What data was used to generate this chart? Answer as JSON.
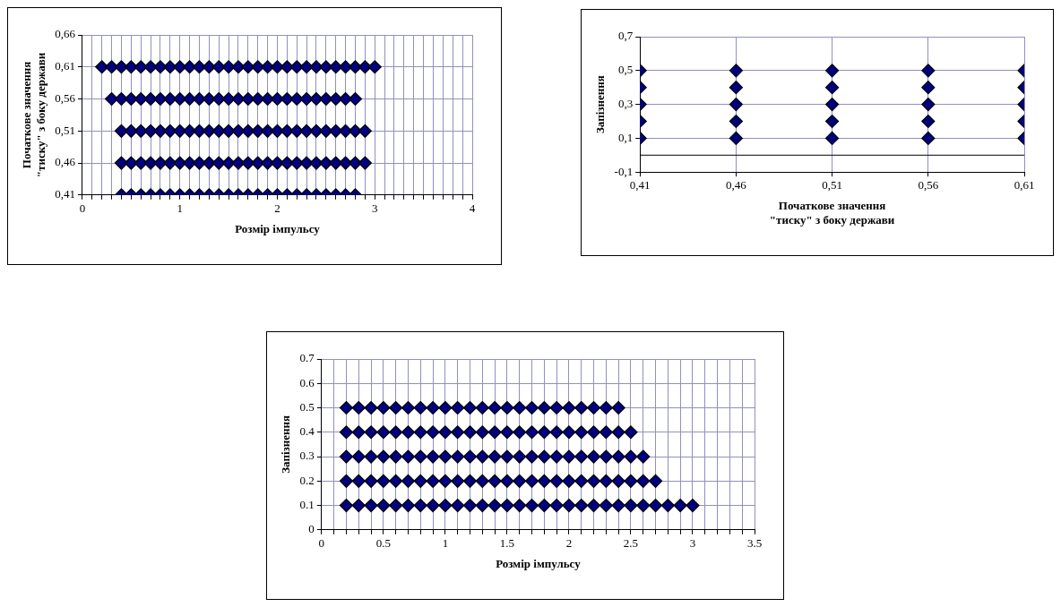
{
  "chart_data": [
    {
      "type": "scatter",
      "xlabel": "Розмір імпульсу",
      "ylabel": "Початкове значення \"тиску\" з боку держави",
      "marker": "diamond",
      "grid": true,
      "xlim": [
        0,
        4
      ],
      "xticks": [
        0,
        {
          "value": 0.1,
          "label": null
        },
        {
          "value": 0.2,
          "label": null
        },
        {
          "value": 0.3,
          "label": null
        },
        {
          "value": 0.4,
          "label": null
        },
        {
          "value": 0.5,
          "label": null
        },
        {
          "value": 0.6,
          "label": null
        },
        {
          "value": 0.7,
          "label": null
        },
        {
          "value": 0.8,
          "label": null
        },
        {
          "value": 0.9,
          "label": null
        },
        1,
        {
          "value": 1.1,
          "label": null
        },
        {
          "value": 1.2,
          "label": null
        },
        {
          "value": 1.3,
          "label": null
        },
        {
          "value": 1.4,
          "label": null
        },
        {
          "value": 1.5,
          "label": null
        },
        {
          "value": 1.6,
          "label": null
        },
        {
          "value": 1.7,
          "label": null
        },
        {
          "value": 1.8,
          "label": null
        },
        {
          "value": 1.9,
          "label": null
        },
        2,
        {
          "value": 2.1,
          "label": null
        },
        {
          "value": 2.2,
          "label": null
        },
        {
          "value": 2.3,
          "label": null
        },
        {
          "value": 2.4,
          "label": null
        },
        {
          "value": 2.5,
          "label": null
        },
        {
          "value": 2.6,
          "label": null
        },
        {
          "value": 2.7,
          "label": null
        },
        {
          "value": 2.8,
          "label": null
        },
        {
          "value": 2.9,
          "label": null
        },
        3,
        {
          "value": 3.1,
          "label": null
        },
        {
          "value": 3.2,
          "label": null
        },
        {
          "value": 3.3,
          "label": null
        },
        {
          "value": 3.4,
          "label": null
        },
        {
          "value": 3.5,
          "label": null
        },
        {
          "value": 3.6,
          "label": null
        },
        {
          "value": 3.7,
          "label": null
        },
        {
          "value": 3.8,
          "label": null
        },
        {
          "value": 3.9,
          "label": null
        },
        4
      ],
      "ylim": [
        0.41,
        0.66
      ],
      "yticks": [
        {
          "value": 0.41,
          "label": "0,41"
        },
        {
          "value": 0.46,
          "label": "0,46"
        },
        {
          "value": 0.51,
          "label": "0,51"
        },
        {
          "value": 0.56,
          "label": "0,56"
        },
        {
          "value": 0.61,
          "label": "0,61"
        },
        {
          "value": 0.66,
          "label": "0,66"
        }
      ],
      "series": [
        {
          "color": "#000080",
          "x": [
            0.2,
            0.3,
            0.4,
            0.5,
            0.6,
            0.7,
            0.8,
            0.9,
            1,
            1.1,
            1.2,
            1.3,
            1.4,
            1.5,
            1.6,
            1.7,
            1.8,
            1.9,
            2,
            2.1,
            2.2,
            2.3,
            2.4,
            2.5,
            2.6,
            2.7,
            2.8,
            2.9,
            3
          ],
          "values": [
            0.61,
            0.61,
            0.61,
            0.61,
            0.61,
            0.61,
            0.61,
            0.61,
            0.61,
            0.61,
            0.61,
            0.61,
            0.61,
            0.61,
            0.61,
            0.61,
            0.61,
            0.61,
            0.61,
            0.61,
            0.61,
            0.61,
            0.61,
            0.61,
            0.61,
            0.61,
            0.61,
            0.61,
            0.61
          ]
        },
        {
          "color": "#000080",
          "x": [
            0.3,
            0.4,
            0.5,
            0.6,
            0.7,
            0.8,
            0.9,
            1,
            1.1,
            1.2,
            1.3,
            1.4,
            1.5,
            1.6,
            1.7,
            1.8,
            1.9,
            2,
            2.1,
            2.2,
            2.3,
            2.4,
            2.5,
            2.6,
            2.7,
            2.8
          ],
          "values": [
            0.56,
            0.56,
            0.56,
            0.56,
            0.56,
            0.56,
            0.56,
            0.56,
            0.56,
            0.56,
            0.56,
            0.56,
            0.56,
            0.56,
            0.56,
            0.56,
            0.56,
            0.56,
            0.56,
            0.56,
            0.56,
            0.56,
            0.56,
            0.56,
            0.56,
            0.56
          ]
        },
        {
          "color": "#000080",
          "x": [
            0.4,
            0.5,
            0.6,
            0.7,
            0.8,
            0.9,
            1,
            1.1,
            1.2,
            1.3,
            1.4,
            1.5,
            1.6,
            1.7,
            1.8,
            1.9,
            2,
            2.1,
            2.2,
            2.3,
            2.4,
            2.5,
            2.6,
            2.7,
            2.8,
            2.9
          ],
          "values": [
            0.51,
            0.51,
            0.51,
            0.51,
            0.51,
            0.51,
            0.51,
            0.51,
            0.51,
            0.51,
            0.51,
            0.51,
            0.51,
            0.51,
            0.51,
            0.51,
            0.51,
            0.51,
            0.51,
            0.51,
            0.51,
            0.51,
            0.51,
            0.51,
            0.51,
            0.51
          ]
        },
        {
          "color": "#000080",
          "x": [
            0.4,
            0.5,
            0.6,
            0.7,
            0.8,
            0.9,
            1,
            1.1,
            1.2,
            1.3,
            1.4,
            1.5,
            1.6,
            1.7,
            1.8,
            1.9,
            2,
            2.1,
            2.2,
            2.3,
            2.4,
            2.5,
            2.6,
            2.7,
            2.8,
            2.9
          ],
          "values": [
            0.46,
            0.46,
            0.46,
            0.46,
            0.46,
            0.46,
            0.46,
            0.46,
            0.46,
            0.46,
            0.46,
            0.46,
            0.46,
            0.46,
            0.46,
            0.46,
            0.46,
            0.46,
            0.46,
            0.46,
            0.46,
            0.46,
            0.46,
            0.46,
            0.46,
            0.46
          ]
        },
        {
          "color": "#000080",
          "x": [
            0.4,
            0.5,
            0.6,
            0.7,
            0.8,
            0.9,
            1,
            1.1,
            1.2,
            1.3,
            1.4,
            1.5,
            1.6,
            1.7,
            1.8,
            1.9,
            2,
            2.1,
            2.2,
            2.3,
            2.4,
            2.5,
            2.6,
            2.7,
            2.8
          ],
          "values": [
            0.41,
            0.41,
            0.41,
            0.41,
            0.41,
            0.41,
            0.41,
            0.41,
            0.41,
            0.41,
            0.41,
            0.41,
            0.41,
            0.41,
            0.41,
            0.41,
            0.41,
            0.41,
            0.41,
            0.41,
            0.41,
            0.41,
            0.41,
            0.41,
            0.41
          ]
        }
      ]
    },
    {
      "type": "scatter",
      "xlabel": "Початкове значення \"тиску\" з боку держави",
      "ylabel": "Запізнення",
      "marker": "diamond",
      "grid": true,
      "xlim": [
        0.41,
        0.61
      ],
      "xticks": [
        {
          "value": 0.41,
          "label": "0,41"
        },
        {
          "value": 0.46,
          "label": "0,46"
        },
        {
          "value": 0.51,
          "label": "0,51"
        },
        {
          "value": 0.56,
          "label": "0,56"
        },
        {
          "value": 0.61,
          "label": "0,61"
        }
      ],
      "ylim": [
        -0.1,
        0.7
      ],
      "yticks": [
        {
          "value": -0.1,
          "label": "-0,1"
        },
        {
          "value": 0.1,
          "label": "0,1"
        },
        {
          "value": 0.3,
          "label": "0,3"
        },
        {
          "value": 0.5,
          "label": "0,5"
        },
        {
          "value": 0.7,
          "label": "0,7"
        }
      ],
      "ref_lines": [
        {
          "axis": "y",
          "value": 0,
          "color": "#000000"
        }
      ],
      "series": [
        {
          "color": "#000080",
          "x": [
            0.41,
            0.41,
            0.41,
            0.41,
            0.41,
            0.46,
            0.46,
            0.46,
            0.46,
            0.46,
            0.51,
            0.51,
            0.51,
            0.51,
            0.51,
            0.56,
            0.56,
            0.56,
            0.56,
            0.56,
            0.61,
            0.61,
            0.61,
            0.61,
            0.61
          ],
          "values": [
            0.1,
            0.2,
            0.3,
            0.4,
            0.5,
            0.1,
            0.2,
            0.3,
            0.4,
            0.5,
            0.1,
            0.2,
            0.3,
            0.4,
            0.5,
            0.1,
            0.2,
            0.3,
            0.4,
            0.5,
            0.1,
            0.2,
            0.3,
            0.4,
            0.5
          ]
        }
      ]
    },
    {
      "type": "scatter",
      "xlabel": "Розмір імпульсу",
      "ylabel": "Запізнення",
      "marker": "diamond",
      "grid": true,
      "xlim": [
        0,
        3.5
      ],
      "xticks": [
        0,
        {
          "value": 0.1,
          "label": null
        },
        {
          "value": 0.2,
          "label": null
        },
        {
          "value": 0.3,
          "label": null
        },
        {
          "value": 0.4,
          "label": null
        },
        0.5,
        {
          "value": 0.6,
          "label": null
        },
        {
          "value": 0.7,
          "label": null
        },
        {
          "value": 0.8,
          "label": null
        },
        {
          "value": 0.9,
          "label": null
        },
        1,
        {
          "value": 1.1,
          "label": null
        },
        {
          "value": 1.2,
          "label": null
        },
        {
          "value": 1.3,
          "label": null
        },
        {
          "value": 1.4,
          "label": null
        },
        1.5,
        {
          "value": 1.6,
          "label": null
        },
        {
          "value": 1.7,
          "label": null
        },
        {
          "value": 1.8,
          "label": null
        },
        {
          "value": 1.9,
          "label": null
        },
        2,
        {
          "value": 2.1,
          "label": null
        },
        {
          "value": 2.2,
          "label": null
        },
        {
          "value": 2.3,
          "label": null
        },
        {
          "value": 2.4,
          "label": null
        },
        2.5,
        {
          "value": 2.6,
          "label": null
        },
        {
          "value": 2.7,
          "label": null
        },
        {
          "value": 2.8,
          "label": null
        },
        {
          "value": 2.9,
          "label": null
        },
        3,
        {
          "value": 3.1,
          "label": null
        },
        {
          "value": 3.2,
          "label": null
        },
        {
          "value": 3.3,
          "label": null
        },
        {
          "value": 3.4,
          "label": null
        },
        3.5
      ],
      "ylim": [
        0,
        0.7
      ],
      "yticks": [
        0,
        0.1,
        0.2,
        0.3,
        0.4,
        0.5,
        0.6,
        0.7
      ],
      "series": [
        {
          "color": "#000080",
          "x": [
            0.2,
            0.3,
            0.4,
            0.5,
            0.6,
            0.7,
            0.8,
            0.9,
            1,
            1.1,
            1.2,
            1.3,
            1.4,
            1.5,
            1.6,
            1.7,
            1.8,
            1.9,
            2,
            2.1,
            2.2,
            2.3,
            2.4
          ],
          "values": [
            0.5,
            0.5,
            0.5,
            0.5,
            0.5,
            0.5,
            0.5,
            0.5,
            0.5,
            0.5,
            0.5,
            0.5,
            0.5,
            0.5,
            0.5,
            0.5,
            0.5,
            0.5,
            0.5,
            0.5,
            0.5,
            0.5,
            0.5
          ]
        },
        {
          "color": "#000080",
          "x": [
            0.2,
            0.3,
            0.4,
            0.5,
            0.6,
            0.7,
            0.8,
            0.9,
            1,
            1.1,
            1.2,
            1.3,
            1.4,
            1.5,
            1.6,
            1.7,
            1.8,
            1.9,
            2,
            2.1,
            2.2,
            2.3,
            2.4,
            2.5
          ],
          "values": [
            0.4,
            0.4,
            0.4,
            0.4,
            0.4,
            0.4,
            0.4,
            0.4,
            0.4,
            0.4,
            0.4,
            0.4,
            0.4,
            0.4,
            0.4,
            0.4,
            0.4,
            0.4,
            0.4,
            0.4,
            0.4,
            0.4,
            0.4,
            0.4
          ]
        },
        {
          "color": "#000080",
          "x": [
            0.2,
            0.3,
            0.4,
            0.5,
            0.6,
            0.7,
            0.8,
            0.9,
            1,
            1.1,
            1.2,
            1.3,
            1.4,
            1.5,
            1.6,
            1.7,
            1.8,
            1.9,
            2,
            2.1,
            2.2,
            2.3,
            2.4,
            2.5,
            2.6
          ],
          "values": [
            0.3,
            0.3,
            0.3,
            0.3,
            0.3,
            0.3,
            0.3,
            0.3,
            0.3,
            0.3,
            0.3,
            0.3,
            0.3,
            0.3,
            0.3,
            0.3,
            0.3,
            0.3,
            0.3,
            0.3,
            0.3,
            0.3,
            0.3,
            0.3,
            0.3
          ]
        },
        {
          "color": "#000080",
          "x": [
            0.2,
            0.3,
            0.4,
            0.5,
            0.6,
            0.7,
            0.8,
            0.9,
            1,
            1.1,
            1.2,
            1.3,
            1.4,
            1.5,
            1.6,
            1.7,
            1.8,
            1.9,
            2,
            2.1,
            2.2,
            2.3,
            2.4,
            2.5,
            2.6,
            2.7
          ],
          "values": [
            0.2,
            0.2,
            0.2,
            0.2,
            0.2,
            0.2,
            0.2,
            0.2,
            0.2,
            0.2,
            0.2,
            0.2,
            0.2,
            0.2,
            0.2,
            0.2,
            0.2,
            0.2,
            0.2,
            0.2,
            0.2,
            0.2,
            0.2,
            0.2,
            0.2,
            0.2
          ]
        },
        {
          "color": "#000080",
          "x": [
            0.2,
            0.3,
            0.4,
            0.5,
            0.6,
            0.7,
            0.8,
            0.9,
            1,
            1.1,
            1.2,
            1.3,
            1.4,
            1.5,
            1.6,
            1.7,
            1.8,
            1.9,
            2,
            2.1,
            2.2,
            2.3,
            2.4,
            2.5,
            2.6,
            2.7,
            2.8,
            2.9,
            3
          ],
          "values": [
            0.1,
            0.1,
            0.1,
            0.1,
            0.1,
            0.1,
            0.1,
            0.1,
            0.1,
            0.1,
            0.1,
            0.1,
            0.1,
            0.1,
            0.1,
            0.1,
            0.1,
            0.1,
            0.1,
            0.1,
            0.1,
            0.1,
            0.1,
            0.1,
            0.1,
            0.1,
            0.1,
            0.1,
            0.1
          ]
        }
      ]
    }
  ]
}
